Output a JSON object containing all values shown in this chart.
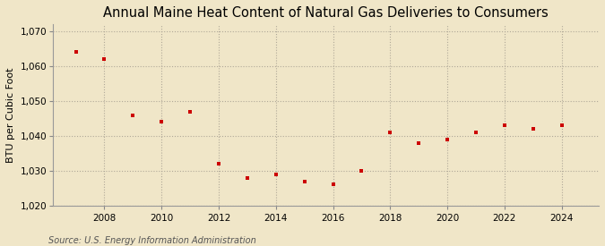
{
  "title": "Annual Maine Heat Content of Natural Gas Deliveries to Consumers",
  "ylabel": "BTU per Cubic Foot",
  "source": "Source: U.S. Energy Information Administration",
  "years": [
    2007,
    2008,
    2009,
    2010,
    2011,
    2012,
    2013,
    2014,
    2015,
    2016,
    2017,
    2018,
    2019,
    2020,
    2021,
    2022,
    2023,
    2024
  ],
  "values": [
    1064,
    1062,
    1046,
    1044,
    1047,
    1032,
    1028,
    1029,
    1027,
    1026,
    1030,
    1041,
    1038,
    1039,
    1041,
    1043,
    1042,
    1043
  ],
  "ylim": [
    1020,
    1072
  ],
  "yticks": [
    1020,
    1030,
    1040,
    1050,
    1060,
    1070
  ],
  "xticks": [
    2008,
    2010,
    2012,
    2014,
    2016,
    2018,
    2020,
    2022,
    2024
  ],
  "xlim": [
    2006.2,
    2025.3
  ],
  "marker_color": "#cc0000",
  "marker": "s",
  "marker_size": 3.5,
  "bg_color": "#f0e6c8",
  "plot_bg_color": "#f0e6c8",
  "grid_color": "#b0a898",
  "title_fontsize": 10.5,
  "title_fontweight": "normal",
  "label_fontsize": 8,
  "tick_fontsize": 7.5,
  "source_fontsize": 7
}
